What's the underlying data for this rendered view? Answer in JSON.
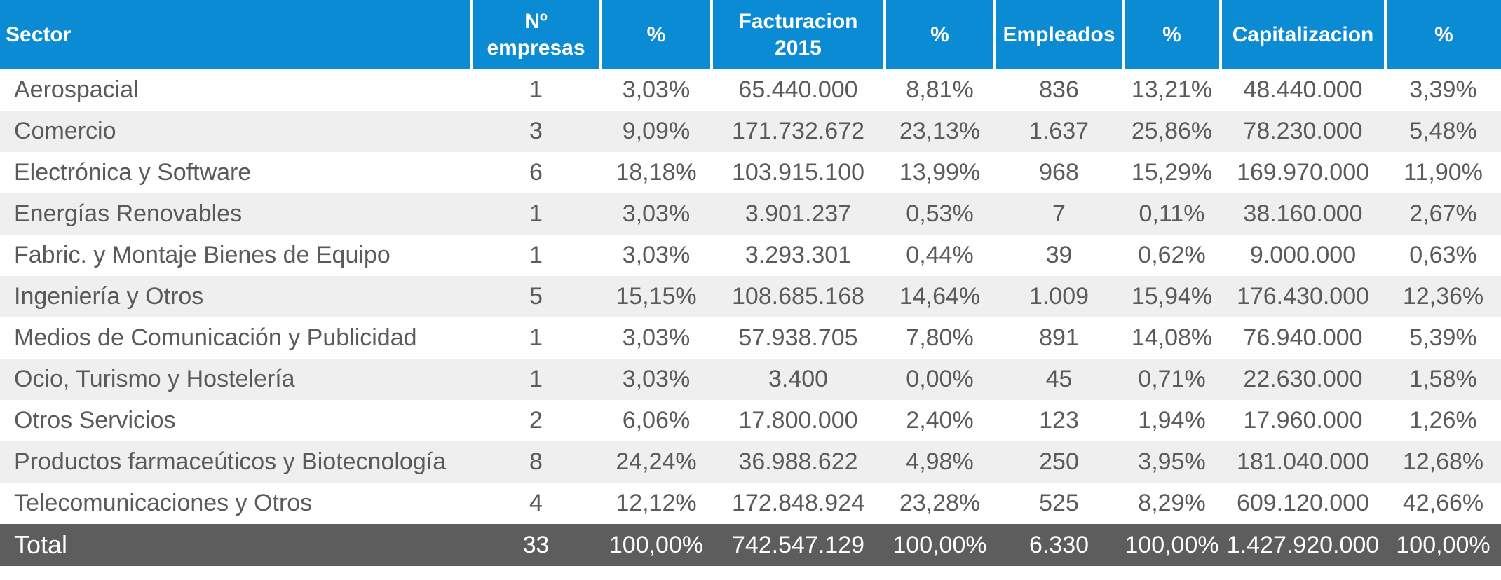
{
  "table": {
    "headers": [
      "Sector",
      "Nº\nempresas",
      "%",
      "Facturacion\n2015",
      "%",
      "Empleados",
      "%",
      "Capitalizacion",
      "%"
    ],
    "rows": [
      [
        "Aerospacial",
        "1",
        "3,03%",
        "65.440.000",
        "8,81%",
        "836",
        "13,21%",
        "48.440.000",
        "3,39%"
      ],
      [
        "Comercio",
        "3",
        "9,09%",
        "171.732.672",
        "23,13%",
        "1.637",
        "25,86%",
        "78.230.000",
        "5,48%"
      ],
      [
        "Electrónica y Software",
        "6",
        "18,18%",
        "103.915.100",
        "13,99%",
        "968",
        "15,29%",
        "169.970.000",
        "11,90%"
      ],
      [
        "Energías Renovables",
        "1",
        "3,03%",
        "3.901.237",
        "0,53%",
        "7",
        "0,11%",
        "38.160.000",
        "2,67%"
      ],
      [
        "Fabric. y Montaje Bienes de Equipo",
        "1",
        "3,03%",
        "3.293.301",
        "0,44%",
        "39",
        "0,62%",
        "9.000.000",
        "0,63%"
      ],
      [
        "Ingeniería y Otros",
        "5",
        "15,15%",
        "108.685.168",
        "14,64%",
        "1.009",
        "15,94%",
        "176.430.000",
        "12,36%"
      ],
      [
        "Medios de Comunicación y Publicidad",
        "1",
        "3,03%",
        "57.938.705",
        "7,80%",
        "891",
        "14,08%",
        "76.940.000",
        "5,39%"
      ],
      [
        "Ocio, Turismo y Hostelería",
        "1",
        "3,03%",
        "3.400",
        "0,00%",
        "45",
        "0,71%",
        "22.630.000",
        "1,58%"
      ],
      [
        "Otros Servicios",
        "2",
        "6,06%",
        "17.800.000",
        "2,40%",
        "123",
        "1,94%",
        "17.960.000",
        "1,26%"
      ],
      [
        "Productos farmaceúticos y Biotecnología",
        "8",
        "24,24%",
        "36.988.622",
        "4,98%",
        "250",
        "3,95%",
        "181.040.000",
        "12,68%"
      ],
      [
        "Telecomunicaciones y Otros",
        "4",
        "12,12%",
        "172.848.924",
        "23,28%",
        "525",
        "8,29%",
        "609.120.000",
        "42,66%"
      ]
    ],
    "total": [
      "Total",
      "33",
      "100,00%",
      "742.547.129",
      "100,00%",
      "6.330",
      "100,00%",
      "1.427.920.000",
      "100,00%"
    ],
    "colors": {
      "header_bg": "#0a8bd3",
      "header_text": "#ffffff",
      "row_alt_bg": "#efefef",
      "body_text": "#5a5a5a",
      "total_bg": "#5d5d5d",
      "total_text": "#ffffff"
    }
  }
}
